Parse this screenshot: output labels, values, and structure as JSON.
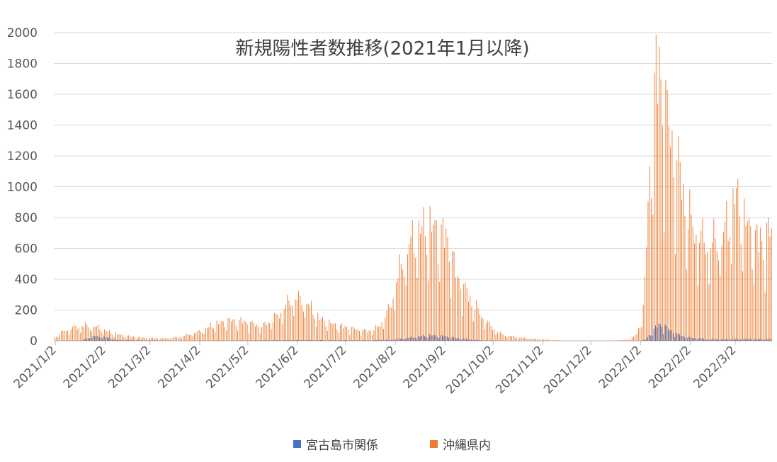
{
  "chart_data": {
    "type": "bar",
    "title": "新規陽性者数推移(2021年1月以降)",
    "xlabel": "",
    "ylabel": "",
    "ylim": [
      0,
      2000
    ],
    "yticks": [
      0,
      200,
      400,
      600,
      800,
      1000,
      1200,
      1400,
      1600,
      1800,
      2000
    ],
    "grid": true,
    "legend_position": "bottom",
    "x_range": [
      "2021-01-01",
      "2022-03-24"
    ],
    "x_tick_labels": [
      "2021/1/2",
      "2021/2/2",
      "2021/3/2",
      "2021/4/2",
      "2021/5/2",
      "2021/6/2",
      "2021/7/2",
      "2021/8/2",
      "2021/9/2",
      "2021/10/2",
      "2021/11/2",
      "2021/12/2",
      "2022/1/2",
      "2022/2/2",
      "2022/3/2"
    ],
    "series": [
      {
        "name": "宮古島市関係",
        "color": "#4472C4",
        "keypoints": [
          [
            "2021-01-01",
            0
          ],
          [
            "2021-01-18",
            2
          ],
          [
            "2021-01-25",
            30
          ],
          [
            "2021-02-01",
            25
          ],
          [
            "2021-02-10",
            5
          ],
          [
            "2021-03-20",
            0
          ],
          [
            "2021-05-10",
            3
          ],
          [
            "2021-06-01",
            5
          ],
          [
            "2021-07-15",
            3
          ],
          [
            "2021-08-01",
            8
          ],
          [
            "2021-08-15",
            25
          ],
          [
            "2021-08-22",
            35
          ],
          [
            "2021-09-01",
            30
          ],
          [
            "2021-09-10",
            15
          ],
          [
            "2021-09-25",
            3
          ],
          [
            "2021-10-10",
            0
          ],
          [
            "2022-01-01",
            0
          ],
          [
            "2022-01-05",
            10
          ],
          [
            "2022-01-09",
            60
          ],
          [
            "2022-01-12",
            95
          ],
          [
            "2022-01-15",
            105
          ],
          [
            "2022-01-19",
            75
          ],
          [
            "2022-01-25",
            40
          ],
          [
            "2022-02-01",
            20
          ],
          [
            "2022-02-15",
            10
          ],
          [
            "2022-03-01",
            12
          ],
          [
            "2022-03-24",
            10
          ]
        ]
      },
      {
        "name": "沖縄県内",
        "color": "#ED7D31",
        "keypoints": [
          [
            "2021-01-01",
            25
          ],
          [
            "2021-01-08",
            70
          ],
          [
            "2021-01-15",
            90
          ],
          [
            "2021-01-22",
            95
          ],
          [
            "2021-01-28",
            85
          ],
          [
            "2021-02-05",
            50
          ],
          [
            "2021-02-15",
            30
          ],
          [
            "2021-02-25",
            20
          ],
          [
            "2021-03-10",
            15
          ],
          [
            "2021-03-20",
            25
          ],
          [
            "2021-03-31",
            55
          ],
          [
            "2021-04-10",
            100
          ],
          [
            "2021-04-20",
            130
          ],
          [
            "2021-04-30",
            120
          ],
          [
            "2021-05-10",
            90
          ],
          [
            "2021-05-20",
            160
          ],
          [
            "2021-05-28",
            260
          ],
          [
            "2021-06-01",
            270
          ],
          [
            "2021-06-08",
            230
          ],
          [
            "2021-06-15",
            140
          ],
          [
            "2021-06-25",
            100
          ],
          [
            "2021-07-05",
            80
          ],
          [
            "2021-07-15",
            60
          ],
          [
            "2021-07-22",
            90
          ],
          [
            "2021-07-29",
            210
          ],
          [
            "2021-08-02",
            380
          ],
          [
            "2021-08-08",
            560
          ],
          [
            "2021-08-15",
            690
          ],
          [
            "2021-08-22",
            720
          ],
          [
            "2021-08-28",
            700
          ],
          [
            "2021-09-04",
            620
          ],
          [
            "2021-09-08",
            420
          ],
          [
            "2021-09-15",
            300
          ],
          [
            "2021-09-22",
            190
          ],
          [
            "2021-09-28",
            110
          ],
          [
            "2021-10-05",
            50
          ],
          [
            "2021-10-12",
            30
          ],
          [
            "2021-10-20",
            18
          ],
          [
            "2021-10-31",
            10
          ],
          [
            "2021-11-08",
            4
          ],
          [
            "2021-11-15",
            0
          ],
          [
            "2021-12-05",
            0
          ],
          [
            "2021-12-15",
            2
          ],
          [
            "2021-12-25",
            8
          ],
          [
            "2021-12-30",
            40
          ],
          [
            "2022-01-03",
            200
          ],
          [
            "2022-01-06",
            800
          ],
          [
            "2022-01-09",
            1500
          ],
          [
            "2022-01-12",
            1700
          ],
          [
            "2022-01-15",
            1600
          ],
          [
            "2022-01-18",
            1380
          ],
          [
            "2022-01-22",
            1200
          ],
          [
            "2022-01-27",
            1000
          ],
          [
            "2022-02-01",
            760
          ],
          [
            "2022-02-08",
            640
          ],
          [
            "2022-02-15",
            620
          ],
          [
            "2022-02-22",
            660
          ],
          [
            "2022-03-01",
            920
          ],
          [
            "2022-03-06",
            800
          ],
          [
            "2022-03-12",
            660
          ],
          [
            "2022-03-18",
            620
          ],
          [
            "2022-03-24",
            700
          ]
        ]
      }
    ]
  }
}
